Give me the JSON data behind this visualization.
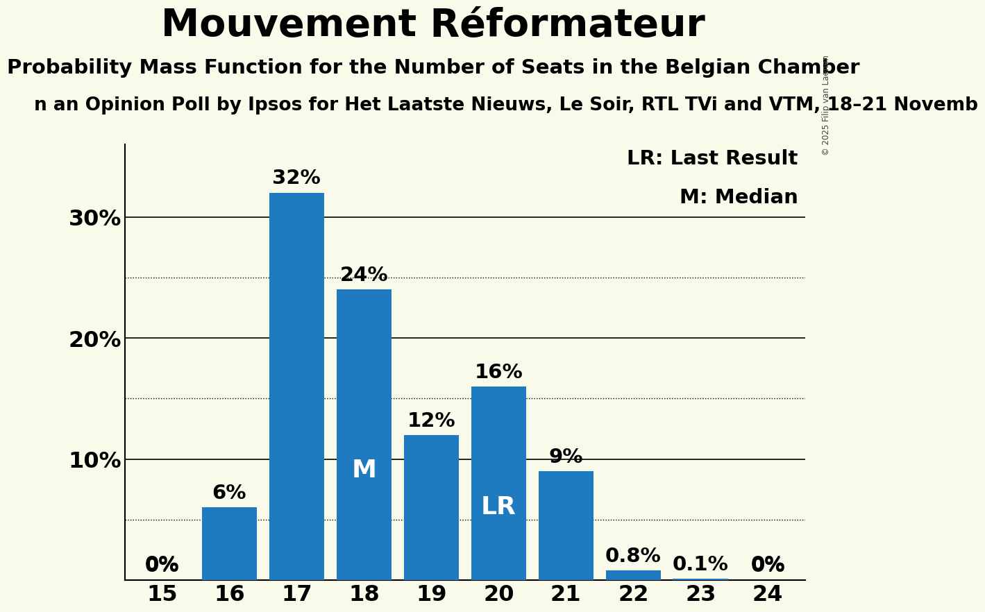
{
  "title": "Mouvement Réformateur",
  "subtitle": "Probability Mass Function for the Number of Seats in the Belgian Chamber",
  "sub_subtitle": "n an Opinion Poll by Ipsos for Het Laatste Nieuws, Le Soir, RTL TVi and VTM, 18–21 Novemb",
  "copyright": "© 2025 Filip van Laenen",
  "categories": [
    15,
    16,
    17,
    18,
    19,
    20,
    21,
    22,
    23,
    24
  ],
  "values": [
    0.0,
    6.0,
    32.0,
    24.0,
    12.0,
    16.0,
    9.0,
    0.8,
    0.1,
    0.0
  ],
  "bar_color": "#1f7bc0",
  "background_color": "#fafaeb",
  "label_color": "#000000",
  "white_label_color": "#ffffff",
  "bar_labels": [
    "0%",
    "6%",
    "32%",
    "24%",
    "12%",
    "16%",
    "9%",
    "0.8%",
    "0.1%",
    "0%"
  ],
  "median_bar_index": 3,
  "lr_bar_index": 5,
  "median_label": "M",
  "lr_label": "LR",
  "legend_lr": "LR: Last Result",
  "legend_m": "M: Median",
  "yticks": [
    10,
    20,
    30
  ],
  "ytick_labels": [
    "10%",
    "20%",
    "30%"
  ],
  "dotted_gridlines": [
    5,
    15,
    25
  ],
  "ylim": [
    0,
    36
  ],
  "title_fontsize": 40,
  "subtitle_fontsize": 21,
  "sub_subtitle_fontsize": 19,
  "axis_tick_fontsize": 23,
  "bar_label_fontsize": 21,
  "inner_label_fontsize": 26,
  "legend_fontsize": 21
}
